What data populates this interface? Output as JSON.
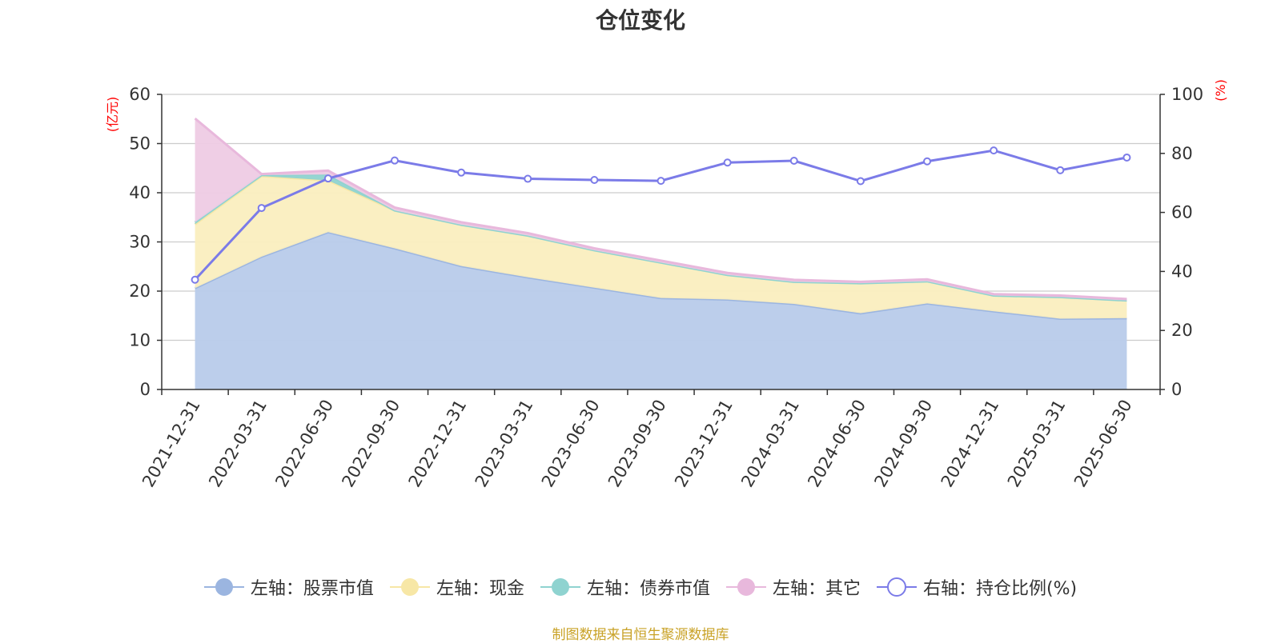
{
  "source_note": "制图数据来自恒生聚源数据库",
  "colors": {
    "stock": "#9bb5e0",
    "stock_fill": "#b8cbea",
    "cash": "#f7e7a6",
    "cash_fill": "#faeebf",
    "bond": "#8fd3d0",
    "other": "#e8b8dc",
    "other_fill": "#eecbe4",
    "ratio": "#7b7be8",
    "axis_unit": "#ff0000"
  },
  "chart_data": {
    "type": "area",
    "title": "仓位变化",
    "x": [
      "2021-12-31",
      "2022-03-31",
      "2022-06-30",
      "2022-09-30",
      "2022-12-31",
      "2023-03-31",
      "2023-06-30",
      "2023-09-30",
      "2023-12-31",
      "2024-03-31",
      "2024-06-30",
      "2024-09-30",
      "2024-12-31",
      "2025-03-31",
      "2025-06-30"
    ],
    "left_axis": {
      "unit": "(亿元)",
      "range": [
        0,
        60
      ],
      "ticks": [
        0,
        10,
        20,
        30,
        40,
        50,
        60
      ]
    },
    "right_axis": {
      "unit": "(%)",
      "range": [
        0,
        100
      ],
      "ticks": [
        0,
        20,
        40,
        60,
        80,
        100
      ]
    },
    "stacked": true,
    "series": [
      {
        "name": "左轴：股票市值",
        "axis": "left",
        "type": "area",
        "values": [
          20.6,
          27.0,
          32.0,
          28.7,
          25.1,
          22.8,
          20.7,
          18.6,
          18.3,
          17.4,
          15.5,
          17.5,
          15.9,
          14.4,
          14.5
        ]
      },
      {
        "name": "左轴：现金",
        "axis": "left",
        "type": "area",
        "values": [
          13.0,
          16.4,
          10.5,
          7.7,
          8.4,
          8.5,
          7.6,
          7.2,
          5.0,
          4.5,
          6.1,
          4.5,
          3.2,
          4.4,
          3.6
        ]
      },
      {
        "name": "左轴：债券市值",
        "axis": "left",
        "type": "area",
        "values": [
          0.4,
          0.2,
          1.2,
          0,
          0,
          0,
          0,
          0,
          0,
          0,
          0,
          0,
          0,
          0,
          0
        ]
      },
      {
        "name": "左轴：其它",
        "axis": "left",
        "type": "area",
        "values": [
          21.1,
          0.2,
          0.8,
          0.6,
          0.5,
          0.5,
          0.4,
          0.4,
          0.4,
          0.4,
          0.3,
          0.4,
          0.3,
          0.3,
          0.3
        ]
      },
      {
        "name": "右轴：持仓比例(%)",
        "axis": "right",
        "type": "line",
        "values": [
          37.2,
          61.5,
          71.5,
          77.6,
          73.5,
          71.4,
          71.0,
          70.7,
          76.9,
          77.5,
          70.6,
          77.3,
          81.0,
          74.3,
          78.6
        ]
      }
    ],
    "grid": true,
    "legend_position": "bottom"
  }
}
